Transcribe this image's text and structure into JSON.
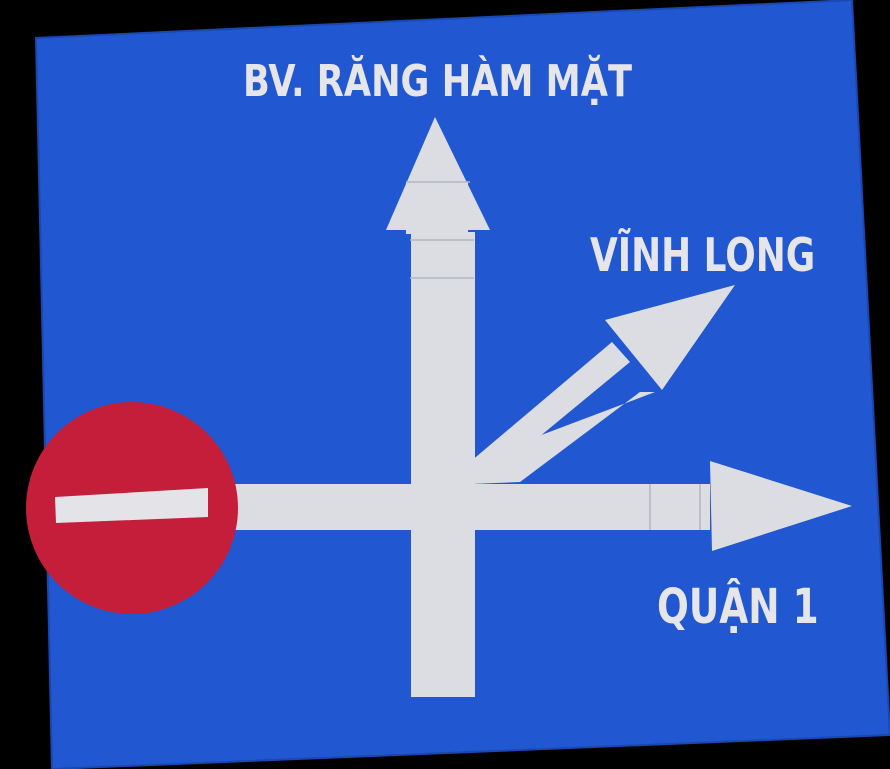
{
  "sign": {
    "colors": {
      "board": "#2158d2",
      "board_edge": "#1a47b0",
      "arrow": "#dcdde3",
      "arrow_seam": "#b4b6c0",
      "no_entry_disc": "#c41e3a",
      "no_entry_bar": "#e4e4e8",
      "label_text": "#e6e6ea"
    },
    "destinations": {
      "north": "BV. RĂNG HÀM MẶT",
      "northeast": "VĨNH LONG",
      "east": "QUẬN 1"
    },
    "icons": {
      "no_entry": "no-entry-icon",
      "arrow_north": "arrow-up-icon",
      "arrow_northeast": "arrow-up-right-icon",
      "arrow_east": "arrow-right-icon"
    }
  }
}
